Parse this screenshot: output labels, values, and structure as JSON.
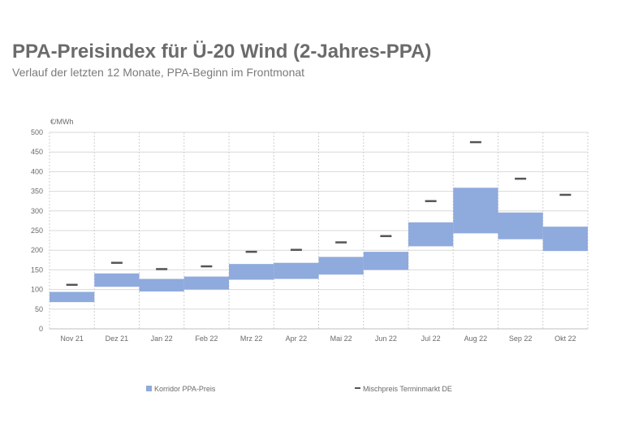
{
  "header": {
    "title": "PPA-Preisindex für Ü-20 Wind (2-Jahres-PPA)",
    "subtitle": "Verlauf der letzten 12 Monate, PPA-Beginn im Frontmonat"
  },
  "chart_data": {
    "type": "bar",
    "title": "PPA-Preisindex für Ü-20 Wind (2-Jahres-PPA)",
    "subtitle": "Verlauf der letzten 12 Monate, PPA-Beginn im Frontmonat",
    "ylabel": "€/MWh",
    "ylim": [
      0,
      500
    ],
    "yticks": [
      0,
      50,
      100,
      150,
      200,
      250,
      300,
      350,
      400,
      450,
      500
    ],
    "categories": [
      "Nov 21",
      "Dez 21",
      "Jan 22",
      "Feb 22",
      "Mrz 22",
      "Apr 22",
      "Mai 22",
      "Jun 22",
      "Jul 22",
      "Aug 22",
      "Sep 22",
      "Okt 22"
    ],
    "series": [
      {
        "name": "Korridor PPA-Preis",
        "type": "floating-bar",
        "color": "#8faadc",
        "low": [
          68,
          107,
          95,
          100,
          125,
          127,
          138,
          150,
          210,
          243,
          228,
          198
        ],
        "high": [
          94,
          141,
          127,
          133,
          165,
          168,
          183,
          196,
          271,
          359,
          296,
          260
        ]
      },
      {
        "name": "Mischpreis Terminmarkt DE",
        "type": "marker-dash",
        "color": "#555555",
        "values": [
          112,
          168,
          152,
          159,
          196,
          201,
          220,
          236,
          325,
          475,
          382,
          341
        ]
      }
    ],
    "grid": true,
    "legend": "bottom"
  }
}
